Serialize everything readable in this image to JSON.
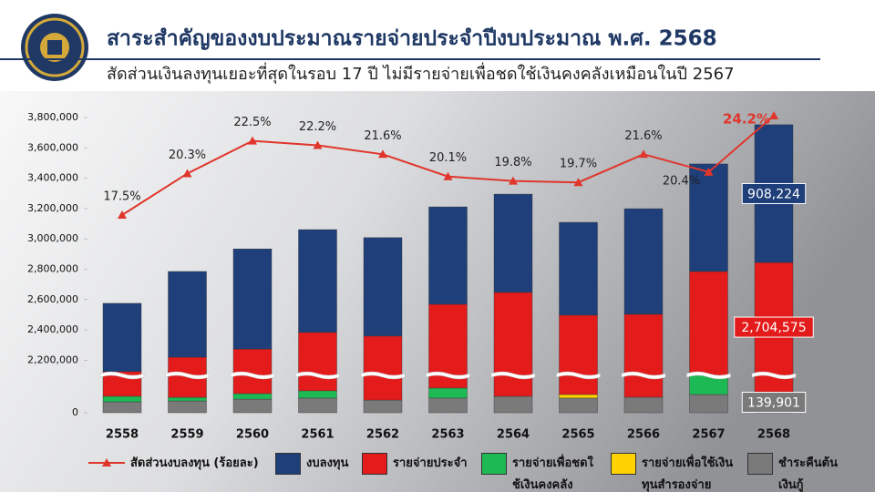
{
  "header": {
    "title": "สาระสำคัญของงบประมาณรายจ่ายประจำปีงบประมาณ พ.ศ. 2568",
    "subtitle": "สัดส่วนเงินลงทุนเยอะที่สุดในรอบ 17 ปี ไม่มีรายจ่ายเพื่อชดใช้เงินคงคลังเหมือนในปี 2567"
  },
  "chart_data": {
    "type": "bar",
    "stacked": true,
    "categories": [
      "2558",
      "2559",
      "2560",
      "2561",
      "2562",
      "2563",
      "2564",
      "2565",
      "2566",
      "2567",
      "2568"
    ],
    "ylim": [
      0,
      3800000
    ],
    "axis_break": [
      250000,
      2100000
    ],
    "yticks": [
      0,
      {
        "value": 2200000,
        "label": "2,200,000"
      },
      {
        "value": 2400000,
        "label": "2,400,000"
      },
      {
        "value": 2600000,
        "label": "2,600,000"
      },
      {
        "value": 2800000,
        "label": "2,800,000"
      },
      {
        "value": 3000000,
        "label": "3,000,000"
      },
      {
        "value": 3200000,
        "label": "3,200,000"
      },
      {
        "value": 3400000,
        "label": "3,400,000"
      },
      {
        "value": 3600000,
        "label": "3,600,000"
      },
      {
        "value": 3800000,
        "label": "3,800,000"
      }
    ],
    "y2lim": [
      10,
      25
    ],
    "series": [
      {
        "name": "สัดส่วนงบลงทุน (ร้อยละ)",
        "type": "line",
        "axis": "y2",
        "color": "#e0352b",
        "values": [
          17.5,
          20.3,
          22.5,
          22.2,
          21.6,
          20.1,
          19.8,
          19.7,
          21.6,
          20.4,
          24.2
        ],
        "value_labels": [
          "17.5%",
          "20.3%",
          "22.5%",
          "22.2%",
          "21.6%",
          "20.1%",
          "19.8%",
          "19.7%",
          "21.6%",
          "20.4%",
          "24.2%"
        ]
      },
      {
        "name": "งบลงทุน",
        "color": "#1f3f7a",
        "values": [
          450000,
          565000,
          660000,
          678000,
          649000,
          642000,
          648000,
          612000,
          696000,
          709000,
          908224
        ],
        "value_labels": [
          null,
          null,
          null,
          null,
          null,
          null,
          null,
          null,
          null,
          null,
          "908,224"
        ]
      },
      {
        "name": "รายจ่ายประจำ",
        "color": "#e31b1b",
        "values": [
          2015000,
          2117000,
          2146000,
          2236000,
          2274000,
          2404000,
          2537000,
          2375000,
          2399000,
          2535000,
          2704575
        ],
        "value_labels": [
          null,
          null,
          null,
          null,
          null,
          null,
          null,
          null,
          null,
          null,
          "2,704,575"
        ]
      },
      {
        "name": "รายจ่ายเพื่อชดใช้เงินคงคลัง",
        "color": "#1db954",
        "values": [
          37000,
          24000,
          37000,
          49000,
          null,
          67000,
          null,
          null,
          null,
          128000,
          null
        ]
      },
      {
        "name": "รายจ่ายเพื่อใช้เงินทุนสำรองจ่าย",
        "color": "#ffd200",
        "values": [
          null,
          null,
          null,
          null,
          null,
          null,
          null,
          24000,
          null,
          null,
          null
        ]
      },
      {
        "name": "ชำระคืนต้นเงินกู้",
        "color": "#7a7a7a",
        "values": [
          73000,
          79000,
          91000,
          98000,
          85000,
          98000,
          110000,
          98000,
          104000,
          122000,
          139901
        ],
        "value_labels": [
          null,
          null,
          null,
          null,
          null,
          null,
          null,
          null,
          null,
          null,
          "139,901"
        ]
      }
    ]
  }
}
